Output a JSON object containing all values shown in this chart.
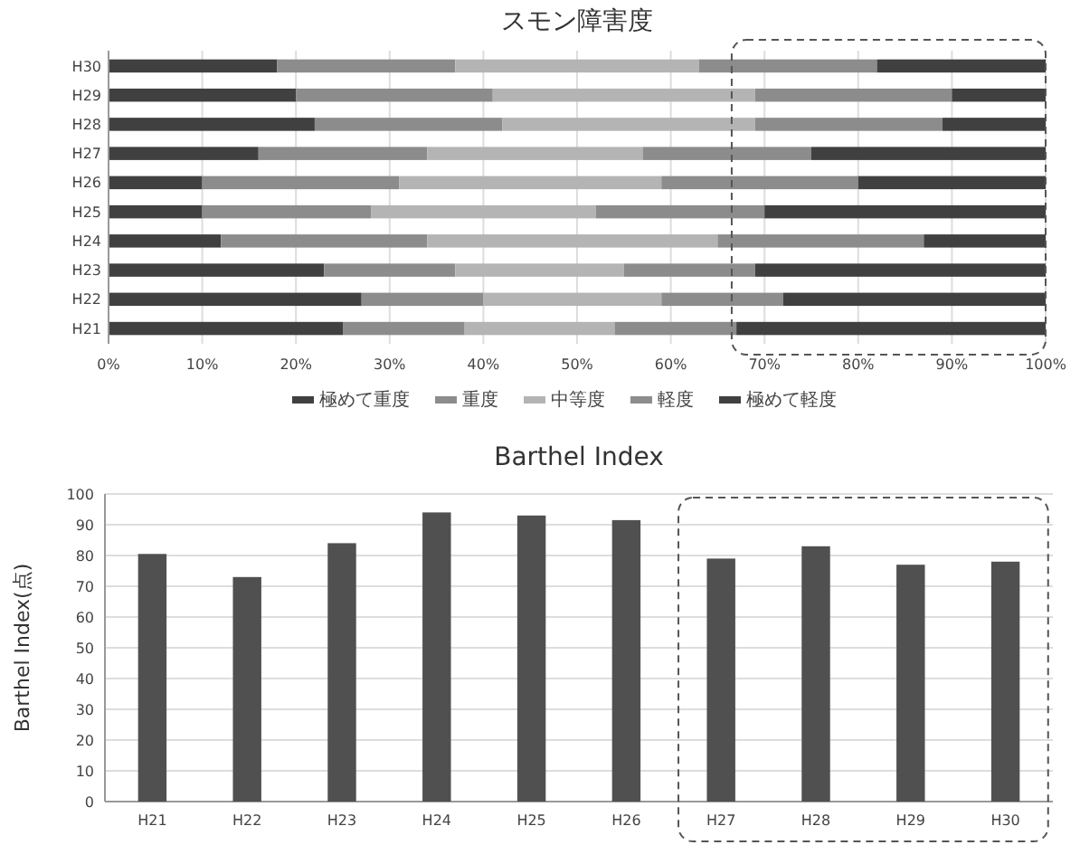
{
  "chart_data": [
    {
      "type": "bar",
      "title": "スモン障害度",
      "orientation": "horizontal",
      "stacked": true,
      "categories": [
        "H30",
        "H29",
        "H28",
        "H27",
        "H26",
        "H25",
        "H24",
        "H23",
        "H22",
        "H21"
      ],
      "series": [
        {
          "name": "極めて重度",
          "color": "#404040",
          "values": [
            18,
            20,
            22,
            16,
            10,
            10,
            12,
            23,
            27,
            25
          ]
        },
        {
          "name": "重度",
          "color": "#8c8c8c",
          "values": [
            19,
            21,
            20,
            18,
            21,
            18,
            22,
            14,
            13,
            13
          ]
        },
        {
          "name": "中等度",
          "color": "#b4b4b4",
          "values": [
            26,
            28,
            27,
            23,
            28,
            24,
            31,
            18,
            19,
            16
          ]
        },
        {
          "name": "軽度",
          "color": "#8c8c8c",
          "values": [
            19,
            21,
            20,
            18,
            21,
            18,
            22,
            14,
            13,
            13
          ]
        },
        {
          "name": "極めて軽度",
          "color": "#404040",
          "values": [
            18,
            10,
            11,
            25,
            20,
            30,
            13,
            31,
            28,
            33
          ]
        }
      ],
      "xlim": [
        0,
        100
      ],
      "xticks": [
        {
          "value": 0,
          "label": "0%"
        },
        {
          "value": 10,
          "label": "10%"
        },
        {
          "value": 20,
          "label": "20%"
        },
        {
          "value": 30,
          "label": "30%"
        },
        {
          "value": 40,
          "label": "40%"
        },
        {
          "value": 50,
          "label": "50%"
        },
        {
          "value": 60,
          "label": "60%"
        },
        {
          "value": 70,
          "label": "70%"
        },
        {
          "value": 80,
          "label": "80%"
        },
        {
          "value": 90,
          "label": "90%"
        },
        {
          "value": 100,
          "label": "100%"
        }
      ],
      "grid": "x",
      "legend": "bottom"
    },
    {
      "type": "bar",
      "title": "Barthel Index",
      "ylabel": "Barthel Index(点)",
      "categories": [
        "H21",
        "H22",
        "H23",
        "H24",
        "H25",
        "H26",
        "H27",
        "H28",
        "H29",
        "H30"
      ],
      "values": [
        80.5,
        73,
        84,
        94,
        93,
        91.5,
        79,
        83,
        77,
        78
      ],
      "color": "#505050",
      "ylim": [
        0,
        100
      ],
      "yticks": [
        0,
        10,
        20,
        30,
        40,
        50,
        60,
        70,
        80,
        90,
        100
      ],
      "grid": "y"
    }
  ]
}
